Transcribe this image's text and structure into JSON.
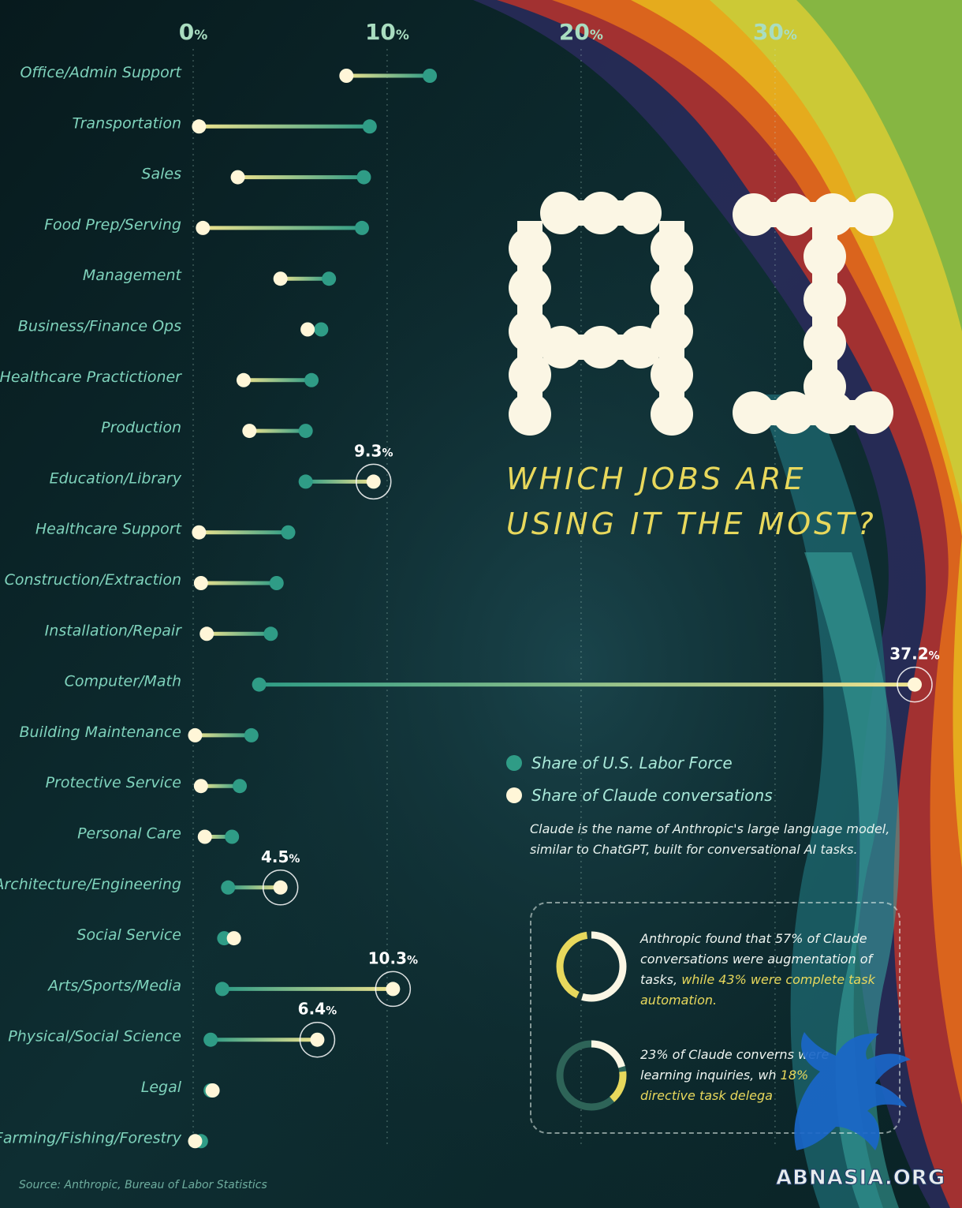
{
  "colors": {
    "labor": "#2f9c86",
    "claude": "#fff6d8",
    "accent_yellow": "#e8d85c",
    "label": "#7fd3bc",
    "tick": "#a9ddc0"
  },
  "title": {
    "logo_text": "AI",
    "line1": "WHICH JOBS ARE",
    "line2": "USING IT THE MOST?"
  },
  "legend": {
    "labor": "Share of U.S. Labor Force",
    "claude": "Share of Claude conversations"
  },
  "note": "Claude is the name of Anthropic's large language model, similar to ChatGPT, built for conversational AI tasks.",
  "stats": [
    {
      "text_a": "Anthropic found that 57% of Claude conversations were augmentation of tasks,",
      "text_b": "while 43% were complete task automation.",
      "value_white": 57,
      "value_yellow": 43
    },
    {
      "text_a": "23% of Claude conver",
      "text_b": "ns were learning inquiries, wh",
      "text_c": "18%",
      "text_d": "directive task delega",
      "value_white": 23,
      "value_yellow": 18
    }
  ],
  "source": "Source: Anthropic, Bureau of Labor Statistics",
  "watermark": "ABNASIA.ORG",
  "chart_data": {
    "type": "dumbbell",
    "xlim": [
      0,
      37.2
    ],
    "x_ticks": [
      0,
      10,
      20,
      30
    ],
    "tick_suffix": "%",
    "grid": "vertical dotted",
    "series": [
      {
        "name": "Share of U.S. Labor Force",
        "key": "labor"
      },
      {
        "name": "Share of Claude conversations",
        "key": "claude"
      }
    ],
    "categories": [
      "Office/Admin Support",
      "Transportation",
      "Sales",
      "Food Prep/Serving",
      "Management",
      "Business/Finance Ops",
      "Healthcare Practictioner",
      "Production",
      "Education/Library",
      "Healthcare Support",
      "Construction/Extraction",
      "Installation/Repair",
      "Computer/Math",
      "Building Maintenance",
      "Protective Service",
      "Personal Care",
      "Architecture/Engineering",
      "Social Service",
      "Arts/Sports/Media",
      "Physical/Social Science",
      "Legal",
      "Farming/Fishing/Forestry"
    ],
    "labor": [
      12.2,
      9.1,
      8.8,
      8.7,
      7.0,
      6.6,
      6.1,
      5.8,
      5.8,
      4.9,
      4.3,
      4.0,
      3.4,
      3.0,
      2.4,
      2.0,
      1.8,
      1.6,
      1.5,
      0.9,
      0.9,
      0.4
    ],
    "claude": [
      7.9,
      0.3,
      2.3,
      0.5,
      4.5,
      5.9,
      2.6,
      2.9,
      9.3,
      0.3,
      0.4,
      0.7,
      37.2,
      0.1,
      0.4,
      0.6,
      4.5,
      2.1,
      10.3,
      6.4,
      1.0,
      0.1
    ],
    "callouts": [
      {
        "category": "Education/Library",
        "value": "9.3",
        "suffix": "%"
      },
      {
        "category": "Computer/Math",
        "value": "37.2",
        "suffix": "%"
      },
      {
        "category": "Architecture/Engineering",
        "value": "4.5",
        "suffix": "%"
      },
      {
        "category": "Arts/Sports/Media",
        "value": "10.3",
        "suffix": "%"
      },
      {
        "category": "Physical/Social Science",
        "value": "6.4",
        "suffix": "%"
      }
    ]
  }
}
